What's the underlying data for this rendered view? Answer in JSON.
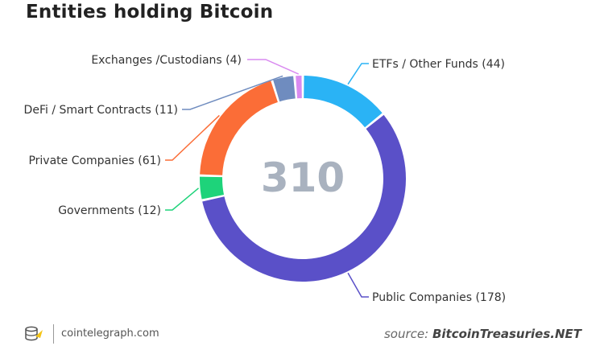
{
  "title": "Entities holding Bitcoin",
  "footer": {
    "site": "cointelegraph.com"
  },
  "source": {
    "prefix": "source:",
    "name": "BitcoinTreasuries.NET"
  },
  "chart_data": {
    "type": "pie",
    "title": "Entities holding Bitcoin",
    "center_label": "310",
    "total": 310,
    "slices": [
      {
        "name": "ETFs / Other Funds",
        "value": 44,
        "label": "ETFs / Other Funds (44)",
        "color": "#2ab3f5"
      },
      {
        "name": "Public Companies",
        "value": 178,
        "label": "Public Companies (178)",
        "color": "#5a50c8"
      },
      {
        "name": "Governments",
        "value": 12,
        "label": "Governments (12)",
        "color": "#1ed37a"
      },
      {
        "name": "Private Companies",
        "value": 61,
        "label": "Private Companies (61)",
        "color": "#fb6d37"
      },
      {
        "name": "DeFi / Smart Contracts",
        "value": 11,
        "label": "DeFi / Smart Contracts (11)",
        "color": "#6f8cbf"
      },
      {
        "name": "Exchanges /Custodians",
        "value": 4,
        "label": "Exchanges /Custodians (4)",
        "color": "#d98af0"
      }
    ]
  }
}
